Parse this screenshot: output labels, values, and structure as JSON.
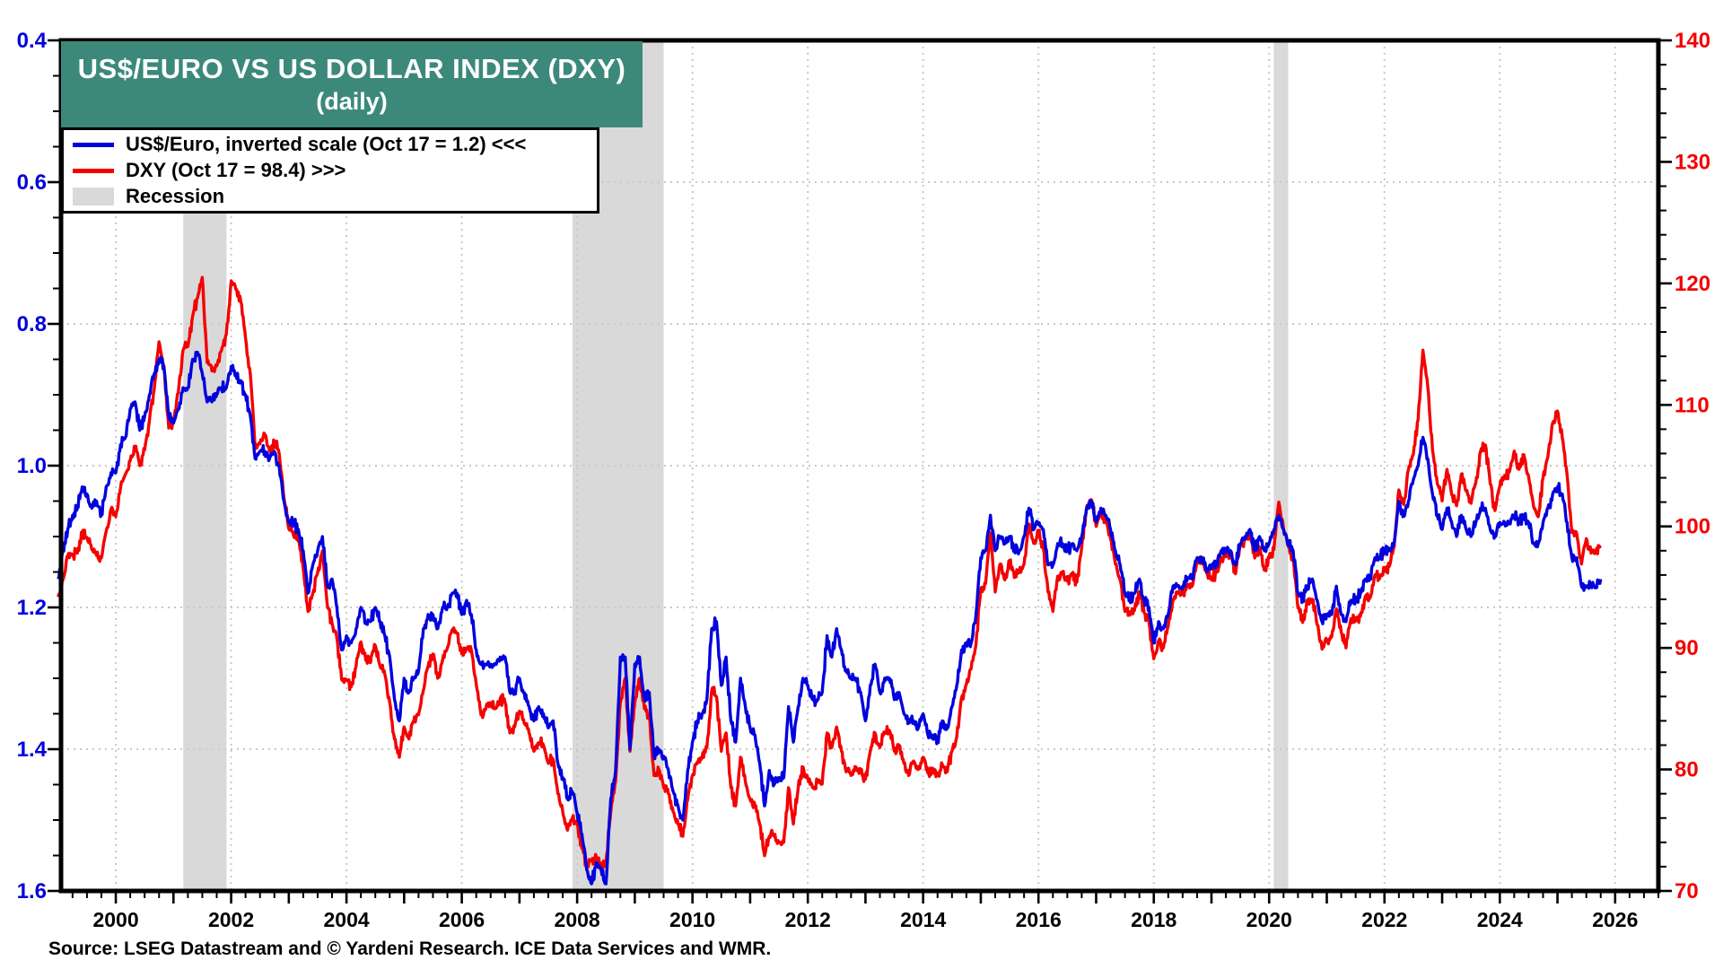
{
  "chart_data": {
    "type": "line",
    "title_line1": "US$/EURO VS US DOLLAR INDEX (DXY)",
    "title_line2": "(daily)",
    "source": "Source: LSEG Datastream and © Yardeni Research. ICE Data Services and WMR.",
    "legend": [
      {
        "label": "US$/Euro, inverted scale (Oct 17 = 1.2) <<<",
        "swatch": "line",
        "color": "#0202dd"
      },
      {
        "label": "DXY (Oct 17 = 98.4) >>>",
        "swatch": "line",
        "color": "#f40000"
      },
      {
        "label": "Recession",
        "swatch": "band",
        "color": "#d9d9d9"
      }
    ],
    "colors": {
      "title_bg": "#3c897b",
      "title_fg": "#ffffff",
      "frame": "#000000",
      "grid": "#c9c9c9",
      "recession": "#d9d9d9",
      "left_axis_labels": "#0202dd",
      "right_axis_labels": "#f40000"
    },
    "left_axis": {
      "side": "left",
      "inverted": true,
      "range": [
        0.4,
        1.6
      ],
      "ticks": [
        0.4,
        0.6,
        0.8,
        1.0,
        1.2,
        1.4,
        1.6
      ],
      "tick_labels": [
        "0.4",
        "0.6",
        "0.8",
        "1.0",
        "1.2",
        "1.4",
        "1.6"
      ],
      "minor_step": 0.05
    },
    "right_axis": {
      "side": "right",
      "inverted": false,
      "range": [
        70,
        140
      ],
      "ticks": [
        70,
        80,
        90,
        100,
        110,
        120,
        130,
        140
      ],
      "tick_labels": [
        "70",
        "80",
        "90",
        "100",
        "110",
        "120",
        "130",
        "140"
      ],
      "minor_step": 2
    },
    "x_axis": {
      "range_years": [
        1999.05,
        2026.75
      ],
      "label_years": [
        2000,
        2002,
        2004,
        2006,
        2008,
        2010,
        2012,
        2014,
        2016,
        2018,
        2020,
        2022,
        2024,
        2026
      ],
      "tick_labels": [
        "2000",
        "2002",
        "2004",
        "2006",
        "2008",
        "2010",
        "2012",
        "2014",
        "2016",
        "2018",
        "2020",
        "2022",
        "2024",
        "2026"
      ],
      "major_tick_step_years": 1,
      "minor_tick_step_years": 0.25
    },
    "recession_bands": [
      {
        "name": "2001 recession",
        "start": 2001.17,
        "end": 2001.92
      },
      {
        "name": "2008-2009 recession",
        "start": 2007.92,
        "end": 2009.5
      },
      {
        "name": "2020 recession",
        "start": 2020.08,
        "end": 2020.33
      }
    ],
    "series": [
      {
        "name": "US$/Euro, inverted scale",
        "axis": "left",
        "color": "#0202dd",
        "start_year": 1999.0,
        "frequency": "monthly",
        "values": [
          1.16,
          1.12,
          1.09,
          1.07,
          1.06,
          1.03,
          1.04,
          1.06,
          1.05,
          1.07,
          1.03,
          1.01,
          1.01,
          0.97,
          0.96,
          0.92,
          0.91,
          0.95,
          0.93,
          0.9,
          0.87,
          0.85,
          0.86,
          0.93,
          0.94,
          0.92,
          0.89,
          0.89,
          0.85,
          0.84,
          0.87,
          0.91,
          0.91,
          0.9,
          0.89,
          0.89,
          0.86,
          0.87,
          0.88,
          0.9,
          0.93,
          0.99,
          0.98,
          0.98,
          0.99,
          0.98,
          1.0,
          1.05,
          1.08,
          1.08,
          1.09,
          1.12,
          1.18,
          1.14,
          1.12,
          1.1,
          1.17,
          1.16,
          1.2,
          1.26,
          1.24,
          1.25,
          1.23,
          1.2,
          1.22,
          1.22,
          1.2,
          1.22,
          1.24,
          1.27,
          1.33,
          1.36,
          1.3,
          1.32,
          1.3,
          1.29,
          1.23,
          1.21,
          1.21,
          1.23,
          1.2,
          1.2,
          1.18,
          1.18,
          1.21,
          1.19,
          1.21,
          1.26,
          1.28,
          1.28,
          1.28,
          1.28,
          1.27,
          1.27,
          1.32,
          1.32,
          1.3,
          1.32,
          1.34,
          1.36,
          1.34,
          1.35,
          1.37,
          1.36,
          1.42,
          1.44,
          1.47,
          1.46,
          1.49,
          1.52,
          1.57,
          1.59,
          1.56,
          1.57,
          1.59,
          1.47,
          1.43,
          1.27,
          1.27,
          1.4,
          1.28,
          1.27,
          1.33,
          1.32,
          1.41,
          1.4,
          1.41,
          1.43,
          1.46,
          1.48,
          1.5,
          1.43,
          1.39,
          1.36,
          1.35,
          1.33,
          1.23,
          1.22,
          1.31,
          1.27,
          1.36,
          1.39,
          1.3,
          1.34,
          1.37,
          1.38,
          1.42,
          1.48,
          1.43,
          1.45,
          1.44,
          1.44,
          1.34,
          1.39,
          1.34,
          1.3,
          1.31,
          1.33,
          1.33,
          1.32,
          1.24,
          1.27,
          1.23,
          1.26,
          1.29,
          1.3,
          1.3,
          1.32,
          1.36,
          1.31,
          1.28,
          1.32,
          1.3,
          1.3,
          1.33,
          1.32,
          1.35,
          1.36,
          1.36,
          1.37,
          1.35,
          1.38,
          1.38,
          1.39,
          1.36,
          1.37,
          1.34,
          1.31,
          1.26,
          1.25,
          1.25,
          1.21,
          1.13,
          1.12,
          1.07,
          1.12,
          1.1,
          1.11,
          1.1,
          1.12,
          1.12,
          1.1,
          1.06,
          1.09,
          1.08,
          1.09,
          1.14,
          1.14,
          1.11,
          1.11,
          1.12,
          1.11,
          1.12,
          1.1,
          1.06,
          1.05,
          1.08,
          1.06,
          1.07,
          1.09,
          1.12,
          1.14,
          1.18,
          1.19,
          1.18,
          1.16,
          1.19,
          1.2,
          1.25,
          1.22,
          1.23,
          1.21,
          1.17,
          1.17,
          1.17,
          1.16,
          1.16,
          1.13,
          1.13,
          1.15,
          1.14,
          1.14,
          1.12,
          1.12,
          1.12,
          1.14,
          1.11,
          1.1,
          1.09,
          1.12,
          1.1,
          1.12,
          1.11,
          1.09,
          1.07,
          1.09,
          1.11,
          1.12,
          1.18,
          1.19,
          1.17,
          1.16,
          1.19,
          1.22,
          1.21,
          1.21,
          1.17,
          1.21,
          1.22,
          1.19,
          1.19,
          1.18,
          1.16,
          1.16,
          1.13,
          1.13,
          1.12,
          1.12,
          1.11,
          1.05,
          1.07,
          1.05,
          1.02,
          1.0,
          0.96,
          0.99,
          1.04,
          1.07,
          1.09,
          1.06,
          1.08,
          1.1,
          1.07,
          1.09,
          1.1,
          1.08,
          1.06,
          1.06,
          1.09,
          1.1,
          1.08,
          1.08,
          1.08,
          1.07,
          1.08,
          1.07,
          1.08,
          1.11,
          1.11,
          1.08,
          1.06,
          1.04,
          1.03,
          1.04,
          1.08,
          1.13,
          1.13,
          1.17,
          1.17,
          1.17,
          1.17,
          1.16
        ]
      },
      {
        "name": "DXY",
        "axis": "right",
        "color": "#f40000",
        "start_year": 1999.0,
        "frequency": "monthly",
        "values": [
          94.2,
          95.6,
          97.5,
          97.6,
          97.8,
          99.5,
          99.1,
          98.1,
          97.6,
          97.4,
          99.6,
          101.4,
          100.8,
          103.2,
          104.3,
          105.4,
          106.6,
          105.0,
          106.3,
          108.7,
          111.3,
          115.2,
          113.2,
          108.1,
          108.5,
          111.0,
          114.5,
          114.8,
          117.3,
          118.8,
          120.5,
          113.5,
          112.8,
          113.2,
          114.5,
          115.8,
          120.2,
          119.5,
          118.5,
          115.5,
          112.5,
          106.5,
          106.8,
          107.5,
          106.2,
          107.0,
          106.0,
          102.3,
          99.8,
          99.2,
          98.8,
          96.5,
          93.0,
          94.5,
          96.2,
          98.0,
          93.5,
          92.0,
          90.8,
          87.4,
          87.4,
          86.8,
          88.5,
          90.5,
          89.0,
          88.8,
          90.2,
          88.5,
          87.8,
          85.5,
          82.5,
          81.0,
          83.5,
          82.5,
          84.0,
          84.5,
          86.5,
          88.5,
          89.5,
          87.5,
          89.0,
          90.0,
          91.5,
          91.2,
          89.5,
          90.0,
          89.8,
          87.0,
          84.5,
          85.0,
          85.5,
          85.0,
          85.8,
          85.5,
          83.0,
          83.5,
          84.8,
          83.8,
          83.0,
          81.5,
          82.2,
          82.0,
          80.5,
          80.8,
          78.0,
          76.5,
          75.0,
          76.0,
          75.5,
          73.5,
          71.8,
          72.5,
          72.8,
          72.0,
          72.2,
          76.5,
          79.0,
          85.5,
          87.5,
          81.5,
          85.5,
          87.5,
          85.0,
          84.5,
          79.5,
          80.0,
          78.5,
          78.0,
          76.5,
          75.5,
          74.5,
          77.5,
          79.5,
          80.5,
          81.0,
          81.8,
          86.5,
          86.0,
          81.5,
          83.0,
          78.5,
          77.0,
          81.0,
          79.0,
          77.5,
          77.0,
          75.5,
          72.9,
          74.5,
          74.5,
          74.0,
          74.0,
          78.5,
          75.5,
          78.5,
          80.2,
          79.2,
          78.5,
          79.0,
          78.8,
          83.0,
          81.8,
          83.5,
          81.5,
          79.8,
          79.5,
          80.2,
          79.8,
          79.2,
          81.5,
          83.0,
          81.8,
          83.0,
          83.2,
          81.5,
          82.0,
          80.5,
          79.5,
          80.7,
          80.0,
          81.0,
          79.7,
          80.0,
          79.5,
          80.4,
          79.8,
          81.5,
          82.7,
          85.9,
          87.0,
          88.3,
          90.3,
          94.8,
          95.3,
          99.5,
          94.6,
          96.9,
          95.6,
          97.2,
          95.8,
          96.2,
          96.9,
          100.2,
          98.6,
          99.6,
          98.2,
          94.6,
          93.0,
          95.9,
          96.1,
          95.5,
          96.0,
          95.4,
          98.3,
          101.5,
          102.2,
          100.0,
          101.1,
          100.4,
          99.0,
          96.9,
          95.6,
          93.0,
          92.7,
          93.1,
          94.6,
          92.9,
          92.1,
          89.1,
          90.6,
          90.0,
          91.8,
          94.0,
          94.5,
          94.6,
          95.1,
          95.1,
          97.1,
          97.3,
          96.2,
          95.6,
          96.2,
          97.3,
          97.5,
          97.8,
          96.1,
          98.5,
          98.9,
          99.4,
          97.4,
          98.3,
          96.4,
          97.4,
          98.1,
          102.0,
          99.8,
          98.3,
          97.4,
          93.3,
          92.1,
          93.9,
          94.0,
          91.9,
          89.9,
          90.6,
          90.9,
          93.2,
          91.3,
          90.0,
          92.4,
          92.2,
          92.6,
          94.2,
          94.1,
          96.0,
          95.7,
          96.5,
          96.7,
          98.3,
          103.0,
          101.8,
          104.7,
          105.9,
          108.8,
          114.5,
          111.5,
          106.3,
          103.5,
          102.1,
          104.7,
          102.6,
          101.7,
          104.3,
          102.9,
          101.9,
          103.6,
          106.2,
          106.7,
          103.5,
          101.3,
          103.3,
          104.2,
          104.5,
          106.2,
          104.7,
          105.9,
          104.1,
          101.7,
          100.8,
          104.0,
          105.7,
          108.5,
          109.5,
          107.3,
          104.2,
          99.5,
          99.4,
          96.9,
          99.0,
          97.8,
          97.8,
          98.4
        ]
      }
    ]
  }
}
